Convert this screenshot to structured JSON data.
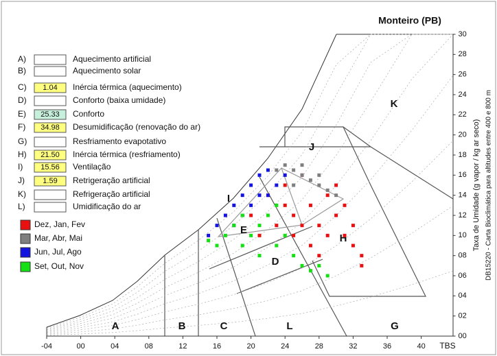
{
  "chart_data": {
    "type": "scatter",
    "title": "Monteiro (PB)",
    "x_label": "TBS",
    "y_label": "Taxa de Umidade (g vapor / kg ar seco)",
    "note": "DB15220 - Carta Bioclimática para altitudes entre 400 e 800 m",
    "xlim": [
      -4,
      43.7
    ],
    "ylim": [
      0,
      30
    ],
    "xticks": [
      {
        "value": -4,
        "label": "-04"
      },
      {
        "value": 0,
        "label": "00"
      },
      {
        "value": 4,
        "label": "04"
      },
      {
        "value": 8,
        "label": "08"
      },
      12,
      16,
      20,
      24,
      28,
      32,
      36,
      40
    ],
    "yticks": [
      {
        "value": 0,
        "label": "00"
      },
      {
        "value": 2,
        "label": "02"
      },
      {
        "value": 4,
        "label": "04"
      },
      {
        "value": 6,
        "label": "06"
      },
      {
        "value": 8,
        "label": "08"
      },
      10,
      12,
      14,
      16,
      18,
      20,
      22,
      24,
      26,
      28,
      30
    ],
    "zones": [
      "A",
      "B",
      "C",
      "D",
      "E",
      "G",
      "H",
      "I",
      "J",
      "K",
      "L"
    ],
    "strategies": [
      {
        "letter": "A)",
        "label": "Aquecimento artificial"
      },
      {
        "letter": "B)",
        "label": "Aquecimento solar"
      },
      {
        "letter": "C)",
        "label": "Inércia térmica (aquecimento)",
        "value": 1.04,
        "box_color": "#ffff80"
      },
      {
        "letter": "D)",
        "label": "Conforto (baixa umidade)"
      },
      {
        "letter": "E)",
        "label": "Conforto",
        "value": 25.33,
        "box_color": "#c6f0dc"
      },
      {
        "letter": "F)",
        "label": "Desumidificação (renovação do ar)",
        "value": 34.98,
        "box_color": "#ffff80"
      },
      {
        "letter": "G)",
        "label": "Resfriamento evapotativo"
      },
      {
        "letter": "H)",
        "label": "Inércia térmica (resfriamento)",
        "value": 21.5,
        "value_label": "21.50",
        "box_color": "#ffff80"
      },
      {
        "letter": "I)",
        "label": "Ventilação",
        "value": 15.56,
        "box_color": "#ffff80"
      },
      {
        "letter": "J)",
        "label": "Retrigeração artificial",
        "value": 1.59,
        "box_color": "#ffff80"
      },
      {
        "letter": "K)",
        "label": "Refrigeração artificial"
      },
      {
        "letter": "L)",
        "label": "Umidificação do ar"
      }
    ],
    "series": [
      {
        "name": "Dez, Jan, Fev",
        "color": "#e81010",
        "x": [
          22,
          24,
          25,
          26,
          27,
          28,
          29,
          30,
          31,
          32,
          33,
          27,
          25,
          23,
          29,
          30,
          31,
          32,
          28,
          26,
          33,
          24,
          20,
          21
        ],
        "values": [
          14,
          15,
          12,
          16,
          13,
          11,
          14,
          12,
          10,
          9,
          8,
          9,
          10,
          11,
          10,
          15,
          13,
          11,
          8,
          11,
          7,
          13,
          12,
          10
        ]
      },
      {
        "name": "Mar, Abr, Mai",
        "color": "#7f7f7f",
        "x": [
          24,
          25,
          26,
          27,
          28,
          29,
          23,
          26,
          28,
          30,
          25
        ],
        "values": [
          17,
          16.5,
          16,
          15.5,
          15,
          14.5,
          16.5,
          17,
          16,
          14,
          15
        ]
      },
      {
        "name": "Jun, Jul, Ago",
        "color": "#1414e0",
        "x": [
          16,
          17,
          18,
          19,
          20,
          21,
          22,
          23,
          20,
          22,
          18,
          24,
          19,
          21,
          15
        ],
        "values": [
          11,
          12,
          13,
          14,
          15,
          16,
          16.5,
          15,
          13,
          14,
          11,
          16,
          12,
          14,
          10
        ]
      },
      {
        "name": "Set, Out, Nov",
        "color": "#14e014",
        "x": [
          16,
          17,
          18,
          19,
          20,
          21,
          22,
          23,
          24,
          25,
          26,
          27,
          19,
          21,
          23,
          15,
          28,
          29
        ],
        "values": [
          9,
          10,
          11,
          12,
          10,
          11,
          12,
          9,
          10,
          8,
          7,
          6.5,
          9,
          8,
          13,
          9.5,
          7,
          6
        ]
      }
    ]
  }
}
